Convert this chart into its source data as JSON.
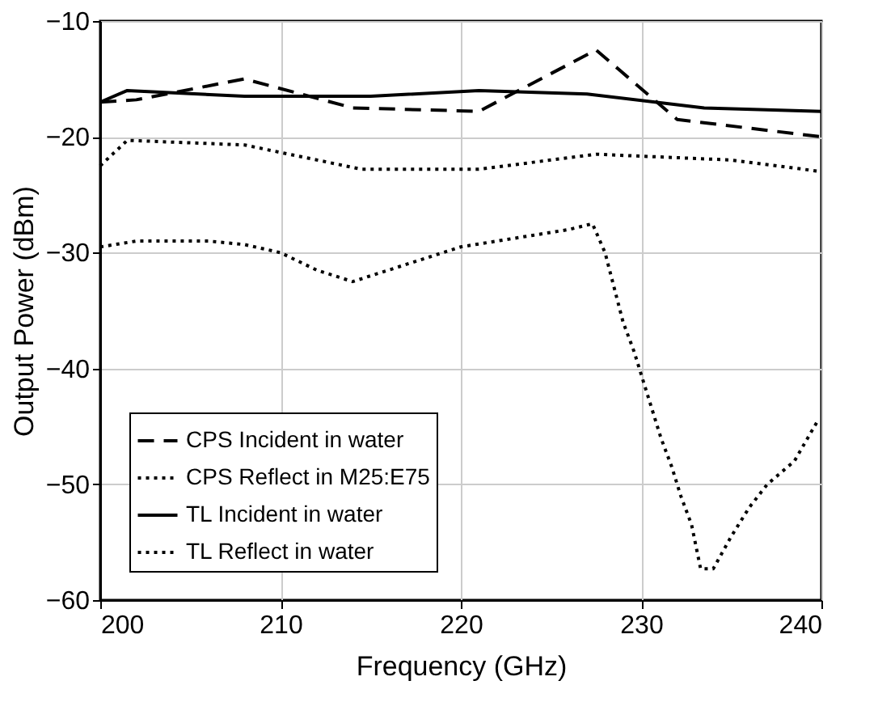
{
  "chart_data": {
    "type": "line",
    "xlabel": "Frequency (GHz)",
    "ylabel": "Output Power (dBm)",
    "xlim": [
      200,
      240
    ],
    "xticks": [
      200,
      210,
      220,
      230,
      240
    ],
    "ylim": [
      -60,
      -10
    ],
    "yticks": [
      -60,
      -50,
      -40,
      -30,
      -20,
      -10
    ],
    "grid": true,
    "legend": "bottom left",
    "marker": "none",
    "series": [
      {
        "name": "CPS Incident in water",
        "color": "#000000",
        "line_style": "dashed",
        "x": [
          200,
          202,
          208,
          214,
          221,
          227.5,
          232,
          240
        ],
        "values": [
          -17,
          -16.8,
          -15,
          -17.5,
          -17.8,
          -12.5,
          -18.5,
          -20
        ]
      },
      {
        "name": "CPS Reflect in M25:E75",
        "color": "#000000",
        "line_style": "dotted",
        "x": [
          200,
          202,
          204,
          206,
          208,
          210,
          212,
          214,
          216,
          218,
          220,
          222,
          224,
          226,
          227.3,
          228,
          228.5,
          229,
          229.6,
          230,
          230.6,
          231.1,
          231.7,
          232.2,
          232.8,
          233.3,
          234,
          235,
          236,
          237,
          238.5,
          239.8
        ],
        "values": [
          -29.5,
          -29,
          -29,
          -29,
          -29.3,
          -30,
          -31.5,
          -32.5,
          -31.5,
          -30.5,
          -29.5,
          -29,
          -28.5,
          -28,
          -27.5,
          -30,
          -33,
          -36,
          -38.5,
          -40.5,
          -43.5,
          -46,
          -48.5,
          -51,
          -53.5,
          -57.3,
          -57.3,
          -54.5,
          -52,
          -50,
          -48,
          -44.5
        ]
      },
      {
        "name": "TL Incident in water",
        "color": "#000000",
        "line_style": "solid",
        "x": [
          200,
          201.5,
          208,
          215,
          221,
          227,
          233.5,
          240
        ],
        "values": [
          -17,
          -16,
          -16.5,
          -16.5,
          -16,
          -16.3,
          -17.5,
          -17.8
        ]
      },
      {
        "name": "TL Reflect in water",
        "color": "#000000",
        "line_style": "dotted",
        "x": [
          200,
          201.5,
          208,
          214.5,
          221,
          227.5,
          235,
          240
        ],
        "values": [
          -22.5,
          -20.3,
          -20.7,
          -22.8,
          -22.8,
          -21.5,
          -22,
          -23
        ]
      }
    ]
  }
}
